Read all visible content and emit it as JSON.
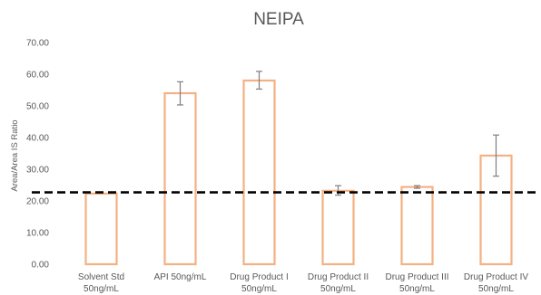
{
  "chart_data": {
    "type": "bar",
    "title": "NEIPA",
    "xlabel": "",
    "ylabel": "Area/Area IS Ratio",
    "ylim": [
      0,
      70
    ],
    "yticks": [
      "0.00",
      "10.00",
      "20.00",
      "30.00",
      "40.00",
      "50.00",
      "60.00",
      "70.00"
    ],
    "grid": false,
    "categories": [
      [
        "Solvent Std",
        "50ng/mL"
      ],
      [
        "API 50ng/mL"
      ],
      [
        "Drug Product I",
        "50ng/mL"
      ],
      [
        "Drug Product II",
        "50ng/mL"
      ],
      [
        "Drug Product III",
        "50ng/mL"
      ],
      [
        "Drug Product IV",
        "50ng/mL"
      ]
    ],
    "values": [
      22.3,
      54.0,
      58.0,
      23.2,
      24.4,
      34.3
    ],
    "error_low": [
      null,
      50.3,
      55.3,
      21.8,
      24.0,
      27.8
    ],
    "error_high": [
      null,
      57.6,
      60.9,
      24.8,
      24.8,
      40.8
    ],
    "reference_line": {
      "value": 22.7,
      "style": "dashed"
    },
    "bar_color": "#F4B183",
    "bar_style": "outline",
    "error_color": "#7f7f7f",
    "reference_color": "#000000"
  }
}
